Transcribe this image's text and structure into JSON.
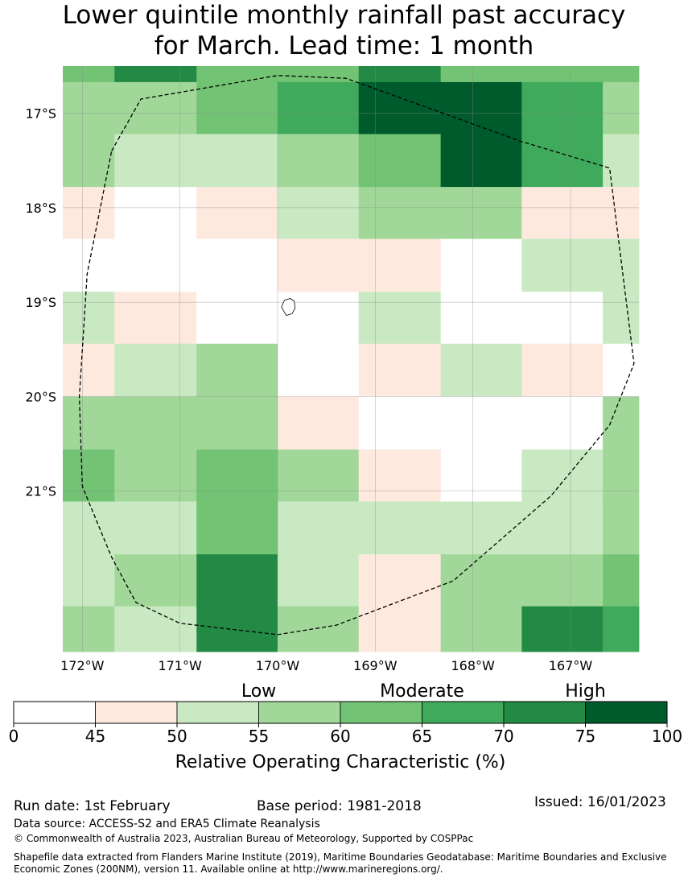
{
  "title_line1": "Lower quintile monthly rainfall past accuracy",
  "title_line2": "for March. Lead time: 1 month",
  "chart_data": {
    "type": "heatmap",
    "title": "Lower quintile monthly rainfall past accuracy for March. Lead time: 1 month",
    "x_range": [
      -172.2,
      -166.3
    ],
    "y_range": [
      -22.7,
      -16.5
    ],
    "x_ticks": [
      {
        "value": -172,
        "label": "172°W"
      },
      {
        "value": -171,
        "label": "171°W"
      },
      {
        "value": -170,
        "label": "170°W"
      },
      {
        "value": -169,
        "label": "169°W"
      },
      {
        "value": -168,
        "label": "168°W"
      },
      {
        "value": -167,
        "label": "167°W"
      }
    ],
    "y_ticks": [
      {
        "value": -17,
        "label": "17°S"
      },
      {
        "value": -18,
        "label": "18°S"
      },
      {
        "value": -19,
        "label": "19°S"
      },
      {
        "value": -20,
        "label": "20°S"
      },
      {
        "value": -21,
        "label": "21°S"
      }
    ],
    "col_edges": [
      -172.2,
      -171.67,
      -170.83,
      -170.0,
      -169.17,
      -168.33,
      -167.5,
      -166.67,
      -166.3
    ],
    "row_edges": [
      -16.5,
      -16.67,
      -17.22,
      -17.78,
      -18.33,
      -18.89,
      -19.44,
      -20.0,
      -20.56,
      -21.11,
      -21.67,
      -22.22,
      -22.7
    ],
    "class_edges": [
      0,
      45,
      50,
      55,
      60,
      65,
      70,
      75,
      100
    ],
    "class_colors": [
      "#ffffff",
      "#fee9df",
      "#c9e9c2",
      "#a1d899",
      "#73c374",
      "#40aa5c",
      "#238a45",
      "#005b2c"
    ],
    "grid_classes": [
      [
        4,
        6,
        4,
        4,
        6,
        4,
        4,
        4
      ],
      [
        3,
        3,
        4,
        5,
        7,
        7,
        5,
        3
      ],
      [
        3,
        2,
        2,
        3,
        4,
        7,
        5,
        2
      ],
      [
        1,
        0,
        1,
        2,
        3,
        3,
        1,
        1
      ],
      [
        0,
        0,
        0,
        1,
        1,
        0,
        2,
        2
      ],
      [
        2,
        1,
        0,
        0,
        2,
        0,
        0,
        2
      ],
      [
        1,
        2,
        3,
        0,
        1,
        2,
        1,
        0
      ],
      [
        3,
        3,
        3,
        1,
        0,
        0,
        0,
        3
      ],
      [
        4,
        3,
        4,
        3,
        1,
        0,
        2,
        3
      ],
      [
        2,
        2,
        4,
        2,
        2,
        2,
        2,
        3
      ],
      [
        2,
        3,
        6,
        2,
        1,
        3,
        3,
        4
      ],
      [
        3,
        2,
        6,
        3,
        1,
        3,
        6,
        5
      ]
    ],
    "boundary": [
      [
        -171.7,
        -17.4
      ],
      [
        -171.4,
        -16.85
      ],
      [
        -170.0,
        -16.6
      ],
      [
        -169.3,
        -16.63
      ],
      [
        -167.5,
        -17.3
      ],
      [
        -166.6,
        -17.58
      ],
      [
        -166.35,
        -19.65
      ],
      [
        -166.6,
        -20.3
      ],
      [
        -167.2,
        -21.05
      ],
      [
        -168.2,
        -21.95
      ],
      [
        -169.4,
        -22.42
      ],
      [
        -170.0,
        -22.52
      ],
      [
        -171.0,
        -22.4
      ],
      [
        -171.45,
        -22.18
      ],
      [
        -171.7,
        -21.7
      ],
      [
        -172.0,
        -20.95
      ],
      [
        -172.03,
        -20.0
      ],
      [
        -171.95,
        -18.7
      ],
      [
        -171.7,
        -17.4
      ]
    ],
    "island": [
      [
        -169.93,
        -18.98
      ],
      [
        -169.87,
        -18.96
      ],
      [
        -169.83,
        -18.99
      ],
      [
        -169.82,
        -19.06
      ],
      [
        -169.85,
        -19.12
      ],
      [
        -169.91,
        -19.14
      ],
      [
        -169.94,
        -19.09
      ],
      [
        -169.96,
        -19.05
      ],
      [
        -169.93,
        -18.98
      ]
    ],
    "colorbar": {
      "ticks": [
        0,
        45,
        50,
        55,
        60,
        65,
        70,
        75,
        100
      ],
      "categories": [
        {
          "label": "Low",
          "value": 55
        },
        {
          "label": "Moderate",
          "value": 65
        },
        {
          "label": "High",
          "value": 75
        }
      ],
      "label": "Relative Operating Characteristic (%)"
    }
  },
  "footer": {
    "run_date": "Run date: 1st February",
    "base_period": "Base period: 1981-2018",
    "issued": "Issued: 16/01/2023",
    "data_source": "Data source: ACCESS-S2 and ERA5 Climate Reanalysis",
    "copyright": "© Commonwealth of Australia 2023, Australian Bureau of Meteorology, Supported by COSPPac",
    "shapefile_line1": "Shapefile data extracted from Flanders Marine Institute (2019), Maritime Boundaries Geodatabase: Maritime Boundaries and Exclusive",
    "shapefile_line2": "Economic Zones (200NM), version 11. Available online at http://www.marineregions.org/."
  }
}
